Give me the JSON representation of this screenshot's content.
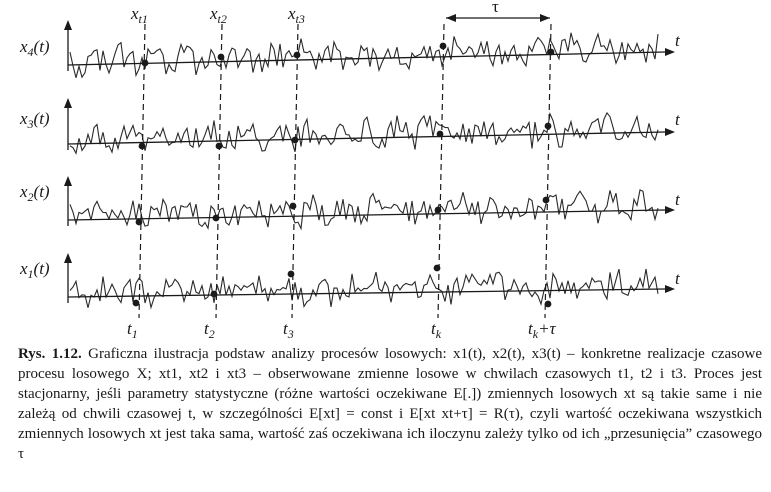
{
  "figure": {
    "realizations": [
      {
        "name": "x",
        "sub": "4",
        "arg": "(t)"
      },
      {
        "name": "x",
        "sub": "3",
        "arg": "(t)"
      },
      {
        "name": "x",
        "sub": "2",
        "arg": "(t)"
      },
      {
        "name": "x",
        "sub": "1",
        "arg": "(t)"
      }
    ],
    "axis_label": "t",
    "top_labels": [
      {
        "name": "x",
        "sub": "t1"
      },
      {
        "name": "x",
        "sub": "t2"
      },
      {
        "name": "x",
        "sub": "t3"
      }
    ],
    "tau_label": "τ",
    "bottom_labels": [
      {
        "name": "t",
        "sub": "1",
        "suffix": ""
      },
      {
        "name": "t",
        "sub": "2",
        "suffix": ""
      },
      {
        "name": "t",
        "sub": "3",
        "suffix": ""
      },
      {
        "name": "t",
        "sub": "k",
        "suffix": ""
      },
      {
        "name": "t",
        "sub": "k",
        "suffix": "+τ"
      }
    ]
  },
  "caption": {
    "label": "Rys. 1.12.",
    "text": "Graficzna ilustracja podstaw analizy procesów losowych: x1(t), x2(t), x3(t) – konkretne realizacje czasowe procesu losowego X; xt1, xt2 i xt3 – obserwowane zmienne losowe w chwilach czasowych t1, t2 i t3. Proces jest stacjonarny, jeśli parametry statystyczne (różne wartości oczekiwane E[.]) zmiennych losowych xt są takie same i nie zależą od chwili czasowej t, w szczególności E[xt] = const i E[xt xt+τ] = R(τ), czyli wartość oczekiwana wszystkich zmiennych losowych xt jest taka sama, wartość zaś oczekiwana ich iloczynu zależy tylko od ich „przesunięcia” czasowego τ"
  }
}
